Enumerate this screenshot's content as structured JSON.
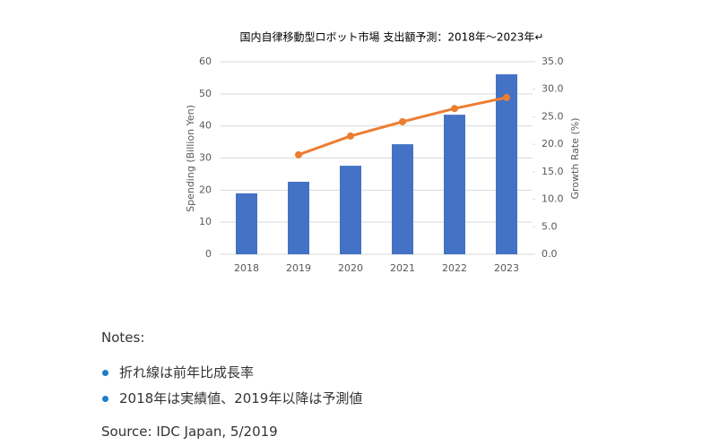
{
  "chart_data": {
    "type": "bar_line",
    "title": "国内自律移動型ロボット市場 支出額予測：2018年～2023年↵",
    "y_label": "Spending (Billion Yen)",
    "y2_label": "Growth Rate (%)",
    "categories": [
      "2018",
      "2019",
      "2020",
      "2021",
      "2022",
      "2023"
    ],
    "series": [
      {
        "type": "bar",
        "color": "#4472c4",
        "values": [
          19.0,
          22.6,
          27.6,
          34.3,
          43.5,
          56.1
        ]
      },
      {
        "type": "line",
        "axis": "y2",
        "color": "#ed7d31",
        "values": [
          null,
          18.1,
          21.5,
          24.1,
          26.5,
          28.5
        ]
      }
    ],
    "ylim": [
      0,
      60
    ],
    "yticks": [
      0,
      10,
      20,
      30,
      40,
      50,
      60
    ],
    "y2lim": [
      0,
      35
    ],
    "y2ticks": [
      {
        "value": 0,
        "label": "0.0"
      },
      {
        "value": 5,
        "label": "5.0"
      },
      {
        "value": 10,
        "label": "10.0"
      },
      {
        "value": 15,
        "label": "15.0"
      },
      {
        "value": 20,
        "label": "20.0"
      },
      {
        "value": 25,
        "label": "25.0"
      },
      {
        "value": 30,
        "label": "30.0"
      },
      {
        "value": 35,
        "label": "35.0"
      }
    ],
    "grid": true
  },
  "notes": {
    "heading": "Notes:",
    "items": [
      "折れ線は前年比成長率",
      "2018年は実績値、2019年以降は予測値"
    ],
    "source": "Source: IDC Japan, 5/2019"
  }
}
